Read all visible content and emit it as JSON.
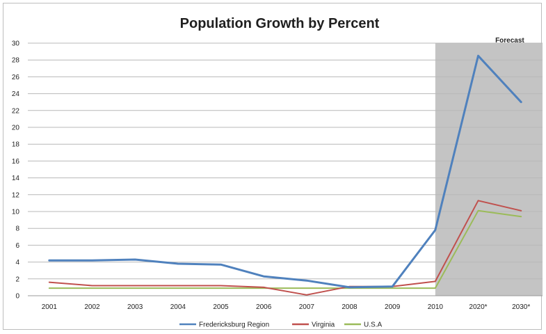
{
  "chart_data": {
    "type": "line",
    "title": "Population Growth by Percent",
    "xlabel": "",
    "ylabel": "",
    "categories": [
      "2001",
      "2002",
      "2003",
      "2004",
      "2005",
      "2006",
      "2007",
      "2008",
      "2009",
      "2010",
      "2020*",
      "2030*"
    ],
    "y_ticks": [
      "0",
      "2",
      "4",
      "6",
      "8",
      "10",
      "12",
      "14",
      "16",
      "18",
      "20",
      "22",
      "24",
      "26",
      "28",
      "30"
    ],
    "ylim": [
      0,
      30
    ],
    "grid": true,
    "legend_position": "bottom",
    "forecast": {
      "label": "Forecast",
      "from_category": "2010",
      "to_category": "2030*",
      "color": "#c4c4c4"
    },
    "series": [
      {
        "name": "Fredericksburg Region",
        "color": "#4f81bd",
        "values": [
          4.2,
          4.2,
          4.3,
          3.8,
          3.7,
          2.3,
          1.8,
          1.0,
          1.1,
          7.8,
          28.5,
          23.0
        ]
      },
      {
        "name": "Virginia",
        "color": "#c0504d",
        "values": [
          1.6,
          1.2,
          1.2,
          1.2,
          1.2,
          1.0,
          0.1,
          1.1,
          1.1,
          1.7,
          11.3,
          10.1
        ]
      },
      {
        "name": "U.S.A",
        "color": "#9bbb59",
        "values": [
          0.9,
          0.9,
          0.9,
          0.9,
          0.9,
          0.9,
          0.9,
          0.9,
          0.9,
          0.9,
          10.1,
          9.4
        ]
      }
    ]
  }
}
